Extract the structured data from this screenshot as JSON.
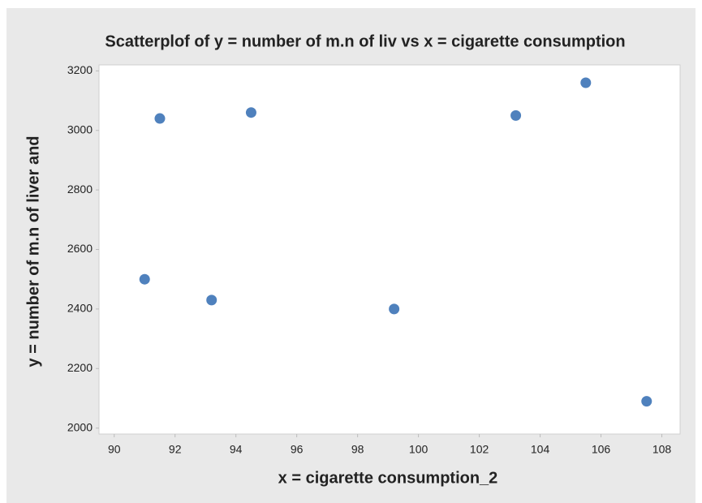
{
  "chart_data": {
    "type": "scatter",
    "title": "Scatterplof of y = number of m.n of liv vs x = cigarette consumption",
    "x_label": "x = cigarette consumption_2",
    "y_label": "y = number of m.n of liver and",
    "x": [
      91.0,
      91.5,
      93.2,
      94.5,
      99.2,
      103.2,
      105.5,
      107.5
    ],
    "values": [
      2500,
      3040,
      2430,
      3060,
      2400,
      3050,
      3160,
      2090
    ],
    "color": "#4f81bd",
    "xlim": [
      89.5,
      108.6
    ],
    "xticks": [
      90,
      92,
      94,
      96,
      98,
      100,
      102,
      104,
      106,
      108
    ],
    "ylim": [
      1980,
      3220
    ],
    "yticks": [
      2000,
      2200,
      2400,
      2600,
      2800,
      3000,
      3200
    ]
  }
}
